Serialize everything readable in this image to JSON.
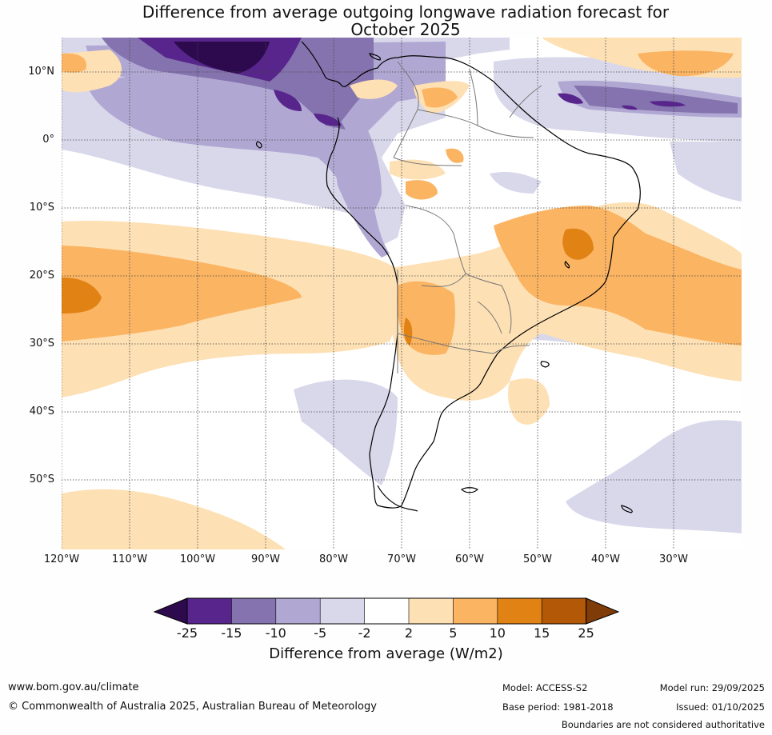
{
  "title_line1": "Difference from average outgoing longwave radiation forecast for",
  "title_line2": "October 2025",
  "lat_labels": [
    "10°N",
    "0°",
    "10°S",
    "20°S",
    "30°S",
    "40°S",
    "50°S"
  ],
  "lon_labels": [
    "120°W",
    "110°W",
    "100°W",
    "90°W",
    "80°W",
    "70°W",
    "60°W",
    "50°W",
    "40°W",
    "30°W"
  ],
  "colorbar": {
    "labels": [
      "-25",
      "-15",
      "-10",
      "-5",
      "-2",
      "2",
      "5",
      "10",
      "15",
      "25"
    ],
    "colors": [
      "#2d0a4e",
      "#57258b",
      "#8473ae",
      "#b0a8d2",
      "#d9d8eb",
      "#ffffff",
      "#fde0b4",
      "#fbb462",
      "#e08214",
      "#b35806",
      "#7f3b08"
    ],
    "title": "Difference from average (W/m2)"
  },
  "footer": {
    "website": "www.bom.gov.au/climate",
    "copyright": "© Commonwealth of Australia 2025, Australian Bureau of Meteorology",
    "model": "Model: ACCESS-S2",
    "base_period": "Base period: 1981-2018",
    "model_run": "Model run: 29/09/2025",
    "issued": "Issued: 01/10/2025",
    "disclaimer": "Boundaries are not considered authoritative"
  }
}
